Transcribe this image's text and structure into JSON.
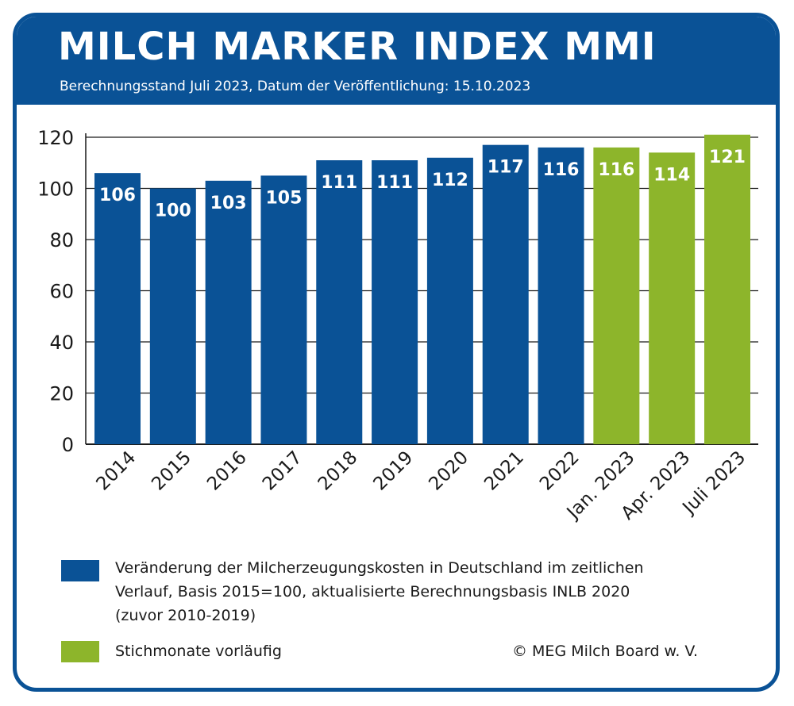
{
  "header": {
    "title": "MILCH MARKER INDEX MMI",
    "subtitle": "Berechnungsstand Juli 2023, Datum der Veröffentlichung: 15.10.2023"
  },
  "colors": {
    "blue": "#0a5296",
    "green": "#8db52b",
    "grid": "#1a1a1a",
    "label_on_bar": "#ffffff"
  },
  "chart_data": {
    "type": "bar",
    "categories": [
      "2014",
      "2015",
      "2016",
      "2017",
      "2018",
      "2019",
      "2020",
      "2021",
      "2022",
      "Jan. 2023",
      "Apr. 2023",
      "Juli 2023"
    ],
    "values": [
      106,
      100,
      103,
      105,
      111,
      111,
      112,
      117,
      116,
      116,
      114,
      121
    ],
    "bar_groups": [
      "blue",
      "blue",
      "blue",
      "blue",
      "blue",
      "blue",
      "blue",
      "blue",
      "blue",
      "green",
      "green",
      "green"
    ],
    "ylim": [
      0,
      120
    ],
    "yticks": [
      "0",
      "20",
      "40",
      "60",
      "80",
      "100",
      "120"
    ],
    "grid": true,
    "data_labels": true
  },
  "legend": {
    "items": [
      {
        "color": "#0a5296",
        "lines": [
          "Veränderung der Milcherzeugungskosten in Deutschland im zeitlichen",
          "Verlauf, Basis 2015=100, aktualisierte Berechnungsbasis INLB 2020",
          "(zuvor 2010-2019)"
        ]
      },
      {
        "color": "#8db52b",
        "lines": [
          "Stichmonate vorläufig"
        ]
      }
    ]
  },
  "copyright": "© MEG Milch Board w. V."
}
